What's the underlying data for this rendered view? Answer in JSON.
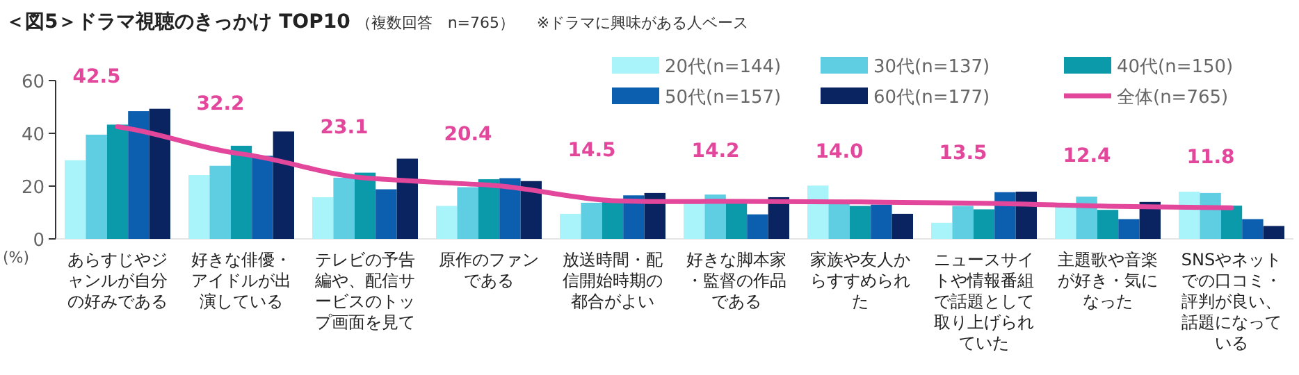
{
  "chart_data": {
    "type": "bar",
    "title": "＜図5＞ドラマ視聴のきっかけ TOP10",
    "subtitle": "（複数回答　n=765）",
    "annotations": [
      "※ドラマに興味がある人ベース"
    ],
    "ylabel": "(%)",
    "categories": [
      "あらすじやジャンルが自分の好みである",
      "好きな俳優・アイドルが出演している",
      "テレビの予告編や、配信サービスのトップ画面を見て",
      "原作のファンである",
      "放送時間・配信開始時期の都合がよい",
      "好きな脚本家・監督の作品である",
      "家族や友人からすすめられた",
      "ニュースサイトや情報番組で話題として取り上げられていた",
      "主題歌や音楽が好き・気になった",
      "SNSやネットでの口コミ・評判が良い、話題になっている"
    ],
    "ylim": [
      0,
      60
    ],
    "yticks": [
      0,
      20,
      40,
      60
    ],
    "grid": false,
    "legend": "top right",
    "series": [
      {
        "name": "20代(n=144)",
        "color": "#a8f4fa",
        "values": [
          29.8,
          24.2,
          15.8,
          12.5,
          9.5,
          14.0,
          20.2,
          6.1,
          12.5,
          17.9
        ]
      },
      {
        "name": "30代(n=137)",
        "color": "#5fcde2",
        "values": [
          39.5,
          27.7,
          23.2,
          19.6,
          13.7,
          16.8,
          13.9,
          12.5,
          16.0,
          17.4
        ]
      },
      {
        "name": "40代(n=150)",
        "color": "#0b9aaa",
        "values": [
          43.3,
          35.3,
          25.1,
          22.6,
          14.2,
          13.9,
          12.5,
          11.2,
          11.0,
          12.6
        ]
      },
      {
        "name": "50代(n=157)",
        "color": "#0c5fae",
        "values": [
          48.4,
          31.5,
          18.8,
          23.0,
          16.5,
          9.3,
          13.0,
          17.7,
          7.5,
          7.5
        ]
      },
      {
        "name": "60代(n=177)",
        "color": "#0a2461",
        "values": [
          49.3,
          40.7,
          30.4,
          21.9,
          17.4,
          15.8,
          9.5,
          17.9,
          14.0,
          4.9
        ]
      },
      {
        "name": "全体(n=765)",
        "color": "#e2479c",
        "type": "line",
        "values": [
          42.5,
          32.2,
          23.1,
          20.4,
          14.5,
          14.2,
          14.0,
          13.5,
          12.4,
          11.8
        ],
        "value_labels": [
          "42.5",
          "32.2",
          "23.1",
          "20.4",
          "14.5",
          "14.2",
          "14.0",
          "13.5",
          "12.4",
          "11.8"
        ]
      }
    ]
  }
}
